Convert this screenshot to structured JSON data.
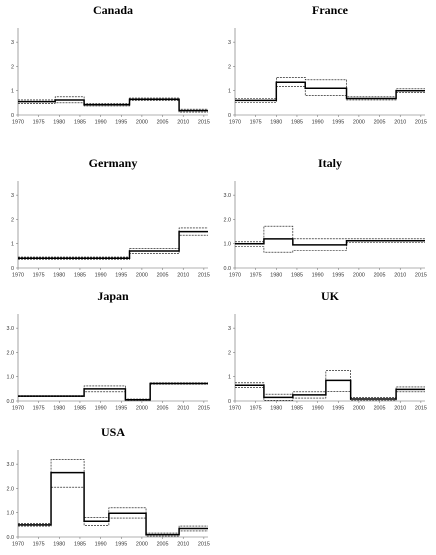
{
  "chart_data": [
    {
      "type": "line",
      "title": "Canada",
      "yticks": [
        "0",
        "1",
        "2",
        "3"
      ],
      "xticks": [
        "1970",
        "1975",
        "1980",
        "1985",
        "1990",
        "1995",
        "2000",
        "2005",
        "2010",
        "2015"
      ],
      "ylim": [
        0,
        3.5
      ],
      "xlim": [
        1970,
        2016
      ],
      "series": [
        {
          "style": "estimate",
          "values": [
            [
              1970,
              0.55
            ],
            [
              1979,
              0.55
            ],
            [
              1979,
              0.62
            ],
            [
              1986,
              0.62
            ],
            [
              1986,
              0.42
            ],
            [
              1997,
              0.42
            ],
            [
              1997,
              0.65
            ],
            [
              2009,
              0.65
            ],
            [
              2009,
              0.18
            ],
            [
              2016,
              0.18
            ]
          ]
        },
        {
          "style": "upper",
          "values": [
            [
              1970,
              0.62
            ],
            [
              1979,
              0.62
            ],
            [
              1979,
              0.75
            ],
            [
              1986,
              0.75
            ],
            [
              1986,
              0.48
            ],
            [
              1997,
              0.48
            ],
            [
              1997,
              0.7
            ],
            [
              2009,
              0.7
            ],
            [
              2009,
              0.24
            ],
            [
              2016,
              0.24
            ]
          ]
        },
        {
          "style": "lower",
          "values": [
            [
              1970,
              0.48
            ],
            [
              1979,
              0.48
            ],
            [
              1979,
              0.5
            ],
            [
              1986,
              0.5
            ],
            [
              1986,
              0.37
            ],
            [
              1997,
              0.37
            ],
            [
              1997,
              0.6
            ],
            [
              2009,
              0.6
            ],
            [
              2009,
              0.12
            ],
            [
              2016,
              0.12
            ]
          ]
        }
      ]
    },
    {
      "type": "line",
      "title": "France",
      "yticks": [
        "0",
        "1",
        "2",
        "3"
      ],
      "xticks": [
        "1970",
        "1975",
        "1980",
        "1985",
        "1990",
        "1995",
        "2000",
        "2005",
        "2010",
        "2015"
      ],
      "ylim": [
        0,
        3.5
      ],
      "xlim": [
        1970,
        2016
      ],
      "series": [
        {
          "style": "estimate",
          "values": [
            [
              1970,
              0.6
            ],
            [
              1980,
              0.6
            ],
            [
              1980,
              1.35
            ],
            [
              1987,
              1.35
            ],
            [
              1987,
              1.1
            ],
            [
              1997,
              1.1
            ],
            [
              1997,
              0.68
            ],
            [
              2009,
              0.68
            ],
            [
              2009,
              1.0
            ],
            [
              2016,
              1.0
            ]
          ]
        },
        {
          "style": "upper",
          "values": [
            [
              1970,
              0.68
            ],
            [
              1980,
              0.68
            ],
            [
              1980,
              1.55
            ],
            [
              1987,
              1.55
            ],
            [
              1987,
              1.45
            ],
            [
              1997,
              1.45
            ],
            [
              1997,
              0.75
            ],
            [
              2009,
              0.75
            ],
            [
              2009,
              1.08
            ],
            [
              2016,
              1.08
            ]
          ]
        },
        {
          "style": "lower",
          "values": [
            [
              1970,
              0.52
            ],
            [
              1980,
              0.52
            ],
            [
              1980,
              1.18
            ],
            [
              1987,
              1.18
            ],
            [
              1987,
              0.8
            ],
            [
              1997,
              0.8
            ],
            [
              1997,
              0.62
            ],
            [
              2009,
              0.62
            ],
            [
              2009,
              0.92
            ],
            [
              2016,
              0.92
            ]
          ]
        }
      ]
    },
    {
      "type": "line",
      "title": "Germany",
      "yticks": [
        "0",
        "1",
        "2",
        "3"
      ],
      "xticks": [
        "1970",
        "1975",
        "1980",
        "1985",
        "1990",
        "1995",
        "2000",
        "2005",
        "2010",
        "2015"
      ],
      "ylim": [
        0,
        3.5
      ],
      "xlim": [
        1970,
        2016
      ],
      "series": [
        {
          "style": "estimate",
          "values": [
            [
              1970,
              0.4
            ],
            [
              1997,
              0.4
            ],
            [
              1997,
              0.7
            ],
            [
              2009,
              0.7
            ],
            [
              2009,
              1.5
            ],
            [
              2016,
              1.5
            ]
          ]
        },
        {
          "style": "upper",
          "values": [
            [
              1970,
              0.45
            ],
            [
              1997,
              0.45
            ],
            [
              1997,
              0.8
            ],
            [
              2009,
              0.8
            ],
            [
              2009,
              1.65
            ],
            [
              2016,
              1.65
            ]
          ]
        },
        {
          "style": "lower",
          "values": [
            [
              1970,
              0.35
            ],
            [
              1997,
              0.35
            ],
            [
              1997,
              0.6
            ],
            [
              2009,
              0.6
            ],
            [
              2009,
              1.35
            ],
            [
              2016,
              1.35
            ]
          ]
        }
      ]
    },
    {
      "type": "line",
      "title": "Italy",
      "yticks": [
        "0.0",
        "1.0",
        "2.0",
        "3.0"
      ],
      "xticks": [
        "1970",
        "1975",
        "1980",
        "1985",
        "1990",
        "1995",
        "2000",
        "2005",
        "2010",
        "2015"
      ],
      "ylim": [
        0,
        3.5
      ],
      "xlim": [
        1970,
        2016
      ],
      "series": [
        {
          "style": "estimate",
          "values": [
            [
              1970,
              1.0
            ],
            [
              1977,
              1.0
            ],
            [
              1977,
              1.2
            ],
            [
              1984,
              1.2
            ],
            [
              1984,
              0.95
            ],
            [
              1997,
              0.95
            ],
            [
              1997,
              1.12
            ],
            [
              2016,
              1.12
            ]
          ]
        },
        {
          "style": "upper",
          "values": [
            [
              1970,
              1.08
            ],
            [
              1977,
              1.08
            ],
            [
              1977,
              1.72
            ],
            [
              1984,
              1.72
            ],
            [
              1984,
              1.2
            ],
            [
              1997,
              1.2
            ],
            [
              1997,
              1.2
            ],
            [
              2016,
              1.2
            ]
          ]
        },
        {
          "style": "lower",
          "values": [
            [
              1970,
              0.88
            ],
            [
              1977,
              0.88
            ],
            [
              1977,
              0.65
            ],
            [
              1984,
              0.65
            ],
            [
              1984,
              0.72
            ],
            [
              1997,
              0.72
            ],
            [
              1997,
              1.04
            ],
            [
              2016,
              1.04
            ]
          ]
        }
      ]
    },
    {
      "type": "line",
      "title": "Japan",
      "yticks": [
        "0.0",
        "1.0",
        "2.0",
        "3.0"
      ],
      "xticks": [
        "1970",
        "1975",
        "1980",
        "1985",
        "1990",
        "1995",
        "2000",
        "2005",
        "2010",
        "2015"
      ],
      "ylim": [
        0,
        3.5
      ],
      "xlim": [
        1970,
        2016
      ],
      "series": [
        {
          "style": "estimate",
          "values": [
            [
              1970,
              0.2
            ],
            [
              1986,
              0.2
            ],
            [
              1986,
              0.5
            ],
            [
              1996,
              0.5
            ],
            [
              1996,
              0.05
            ],
            [
              2002,
              0.05
            ],
            [
              2002,
              0.72
            ],
            [
              2016,
              0.72
            ]
          ]
        },
        {
          "style": "upper",
          "values": [
            [
              1970,
              0.22
            ],
            [
              1986,
              0.22
            ],
            [
              1986,
              0.62
            ],
            [
              1996,
              0.62
            ],
            [
              1996,
              0.08
            ],
            [
              2002,
              0.08
            ],
            [
              2002,
              0.75
            ],
            [
              2016,
              0.75
            ]
          ]
        },
        {
          "style": "lower",
          "values": [
            [
              1970,
              0.18
            ],
            [
              1986,
              0.18
            ],
            [
              1986,
              0.38
            ],
            [
              1996,
              0.38
            ],
            [
              1996,
              0.02
            ],
            [
              2002,
              0.02
            ],
            [
              2002,
              0.69
            ],
            [
              2016,
              0.69
            ]
          ]
        }
      ]
    },
    {
      "type": "line",
      "title": "UK",
      "yticks": [
        "0",
        "1",
        "2",
        "3"
      ],
      "xticks": [
        "1970",
        "1975",
        "1980",
        "1985",
        "1990",
        "1995",
        "2000",
        "2005",
        "2010",
        "2015"
      ],
      "ylim": [
        0,
        3.5
      ],
      "xlim": [
        1970,
        2016
      ],
      "series": [
        {
          "style": "estimate",
          "values": [
            [
              1970,
              0.65
            ],
            [
              1977,
              0.65
            ],
            [
              1977,
              0.15
            ],
            [
              1984,
              0.15
            ],
            [
              1984,
              0.25
            ],
            [
              1992,
              0.25
            ],
            [
              1992,
              0.85
            ],
            [
              1998,
              0.85
            ],
            [
              1998,
              0.08
            ],
            [
              2009,
              0.08
            ],
            [
              2009,
              0.48
            ],
            [
              2016,
              0.48
            ]
          ]
        },
        {
          "style": "upper",
          "values": [
            [
              1970,
              0.75
            ],
            [
              1977,
              0.75
            ],
            [
              1977,
              0.28
            ],
            [
              1984,
              0.28
            ],
            [
              1984,
              0.38
            ],
            [
              1992,
              0.38
            ],
            [
              1992,
              1.25
            ],
            [
              1998,
              1.25
            ],
            [
              1998,
              0.14
            ],
            [
              2009,
              0.14
            ],
            [
              2009,
              0.58
            ],
            [
              2016,
              0.58
            ]
          ]
        },
        {
          "style": "lower",
          "values": [
            [
              1970,
              0.55
            ],
            [
              1977,
              0.55
            ],
            [
              1977,
              0.03
            ],
            [
              1984,
              0.03
            ],
            [
              1984,
              0.12
            ],
            [
              1992,
              0.12
            ],
            [
              1992,
              0.4
            ],
            [
              1998,
              0.4
            ],
            [
              1998,
              0.02
            ],
            [
              2009,
              0.02
            ],
            [
              2009,
              0.38
            ],
            [
              2016,
              0.38
            ]
          ]
        }
      ]
    },
    {
      "type": "line",
      "title": "USA",
      "yticks": [
        "0.0",
        "1.0",
        "2.0",
        "3.0"
      ],
      "xticks": [
        "1970",
        "1975",
        "1980",
        "1985",
        "1990",
        "1995",
        "2000",
        "2005",
        "2010",
        "2015"
      ],
      "ylim": [
        0,
        3.5
      ],
      "xlim": [
        1970,
        2016
      ],
      "series": [
        {
          "style": "estimate",
          "values": [
            [
              1970,
              0.5
            ],
            [
              1978,
              0.5
            ],
            [
              1978,
              2.65
            ],
            [
              1986,
              2.65
            ],
            [
              1986,
              0.65
            ],
            [
              1992,
              0.65
            ],
            [
              1992,
              0.98
            ],
            [
              2001,
              0.98
            ],
            [
              2001,
              0.1
            ],
            [
              2009,
              0.1
            ],
            [
              2009,
              0.35
            ],
            [
              2016,
              0.35
            ]
          ]
        },
        {
          "style": "upper",
          "values": [
            [
              1970,
              0.55
            ],
            [
              1978,
              0.55
            ],
            [
              1978,
              3.2
            ],
            [
              1986,
              3.2
            ],
            [
              1986,
              0.8
            ],
            [
              1992,
              0.8
            ],
            [
              1992,
              1.2
            ],
            [
              2001,
              1.2
            ],
            [
              2001,
              0.16
            ],
            [
              2009,
              0.16
            ],
            [
              2009,
              0.45
            ],
            [
              2016,
              0.45
            ]
          ]
        },
        {
          "style": "lower",
          "values": [
            [
              1970,
              0.45
            ],
            [
              1978,
              0.45
            ],
            [
              1978,
              2.05
            ],
            [
              1986,
              2.05
            ],
            [
              1986,
              0.48
            ],
            [
              1992,
              0.48
            ],
            [
              1992,
              0.78
            ],
            [
              2001,
              0.78
            ],
            [
              2001,
              0.04
            ],
            [
              2009,
              0.04
            ],
            [
              2009,
              0.25
            ],
            [
              2016,
              0.25
            ]
          ]
        }
      ]
    }
  ]
}
